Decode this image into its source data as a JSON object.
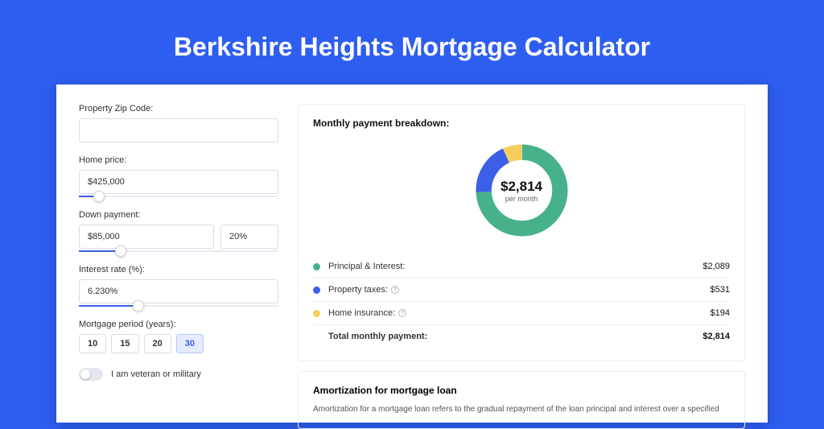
{
  "header": {
    "title": "Berkshire Heights Mortgage Calculator"
  },
  "colors": {
    "page_bg": "#2e5ef0",
    "accent": "#3b5fe6"
  },
  "form": {
    "zip": {
      "label": "Property Zip Code:",
      "value": ""
    },
    "home_price": {
      "label": "Home price:",
      "value": "$425,000",
      "slider_pct": 10
    },
    "down_payment": {
      "label": "Down payment:",
      "value": "$85,000",
      "pct": "20%",
      "slider_pct": 21
    },
    "interest": {
      "label": "Interest rate (%):",
      "value": "6.230%",
      "slider_pct": 30
    },
    "period": {
      "label": "Mortgage period (years):",
      "options": [
        "10",
        "15",
        "20",
        "30"
      ],
      "active": "30"
    },
    "veteran": {
      "label": "I am veteran or military",
      "on": false
    }
  },
  "breakdown": {
    "title": "Monthly payment breakdown:",
    "center_amount": "$2,814",
    "center_sub": "per month",
    "donut": {
      "segments": [
        {
          "name": "Principal & Interest",
          "value": 2089,
          "pct": 74.2,
          "color": "#47b28a"
        },
        {
          "name": "Property taxes",
          "value": 531,
          "pct": 18.9,
          "color": "#3b5fe6"
        },
        {
          "name": "Home insurance",
          "value": 194,
          "pct": 6.9,
          "color": "#f4cf5c"
        }
      ],
      "thickness": 20
    },
    "rows": [
      {
        "label": "Principal & Interest:",
        "value": "$2,089",
        "color": "#47b28a",
        "info": false
      },
      {
        "label": "Property taxes:",
        "value": "$531",
        "color": "#3b5fe6",
        "info": true
      },
      {
        "label": "Home insurance:",
        "value": "$194",
        "color": "#f4cf5c",
        "info": true
      }
    ],
    "total": {
      "label": "Total monthly payment:",
      "value": "$2,814"
    }
  },
  "amort": {
    "title": "Amortization for mortgage loan",
    "text": "Amortization for a mortgage loan refers to the gradual repayment of the loan principal and interest over a specified"
  }
}
